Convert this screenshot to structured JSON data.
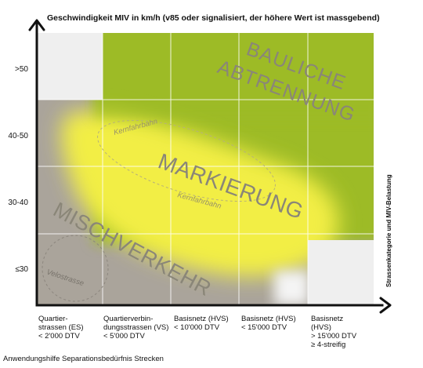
{
  "title": "Geschwindigkeit MIV in km/h (v85 oder signalisiert, der höhere Wert ist massgebend)",
  "y_axis_label": "Strassenkategorie und MIV-Belastung",
  "y_ticks": [
    ">50",
    "40-50",
    "30-40",
    "≤30"
  ],
  "x_categories": [
    [
      "Quartier-",
      "strassen (ES)",
      "< 2'000 DTV"
    ],
    [
      "Quartierverbin-",
      "dungsstrassen (VS)",
      "< 5'000 DTV"
    ],
    [
      "Basisnetz (HVS)",
      "< 10'000 DTV"
    ],
    [
      "Basisnetz (HVS)",
      "< 15'000 DTV"
    ],
    [
      "Basisnetz",
      "(HVS)",
      "> 15'000 DTV",
      "≥ 4-streifig"
    ]
  ],
  "zones": {
    "bauliche": [
      "BAULICHE",
      "ABTRENNUNG"
    ],
    "markierung": "MARKIERUNG",
    "mischverkehr": "MISCHVERKEHR",
    "kernfahrbahn": "Kernfahrbahn",
    "velostrasse": "Velostrasse"
  },
  "caption": "Anwendungshilfe Separationsbedürfnis Strecken",
  "colors": {
    "green": "#9dbb28",
    "yellow": "#f2ee45",
    "gray": "#aaa49b",
    "white_cell": "#efefef",
    "text_on_zone": "#8a8678"
  }
}
